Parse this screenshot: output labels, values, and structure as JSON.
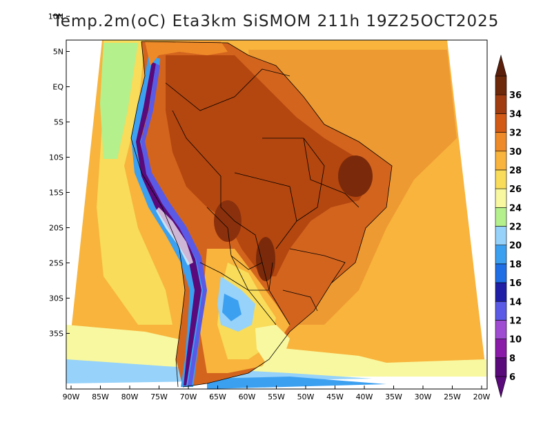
{
  "title": "Temp.2m(oC) Eta3km SiSMOM 211h 19Z25OCT2025",
  "map": {
    "lat_labels": [
      "10N",
      "5N",
      "EQ",
      "5S",
      "10S",
      "15S",
      "20S",
      "25S",
      "30S",
      "35S"
    ],
    "lon_labels": [
      "90W",
      "85W",
      "80W",
      "75W",
      "70W",
      "65W",
      "60W",
      "55W",
      "50W",
      "45W",
      "40W",
      "35W",
      "30W",
      "25W",
      "20W"
    ],
    "lat_values": [
      10,
      5,
      0,
      -5,
      -10,
      -15,
      -20,
      -25,
      -30,
      -35
    ],
    "lon_values": [
      -90,
      -85,
      -80,
      -75,
      -70,
      -65,
      -60,
      -55,
      -50,
      -45,
      -40,
      -35,
      -30,
      -25,
      -20
    ]
  },
  "colorbar": {
    "labels": [
      "6",
      "8",
      "10",
      "12",
      "14",
      "16",
      "18",
      "20",
      "22",
      "24",
      "26",
      "28",
      "30",
      "32",
      "34",
      "36"
    ],
    "colors": [
      "#5a0a7a",
      "#8a1aa8",
      "#a04cd2",
      "#5a5ae6",
      "#1e1ea6",
      "#1e6ee6",
      "#3ca0f0",
      "#96d2fa",
      "#b4f08c",
      "#f8f8a0",
      "#f8dc5a",
      "#f8b43c",
      "#ee8a28",
      "#d25a14",
      "#a03c0f",
      "#6e280a"
    ],
    "low_color": "#5a0a7a",
    "high_color": "#5a1e0a"
  }
}
